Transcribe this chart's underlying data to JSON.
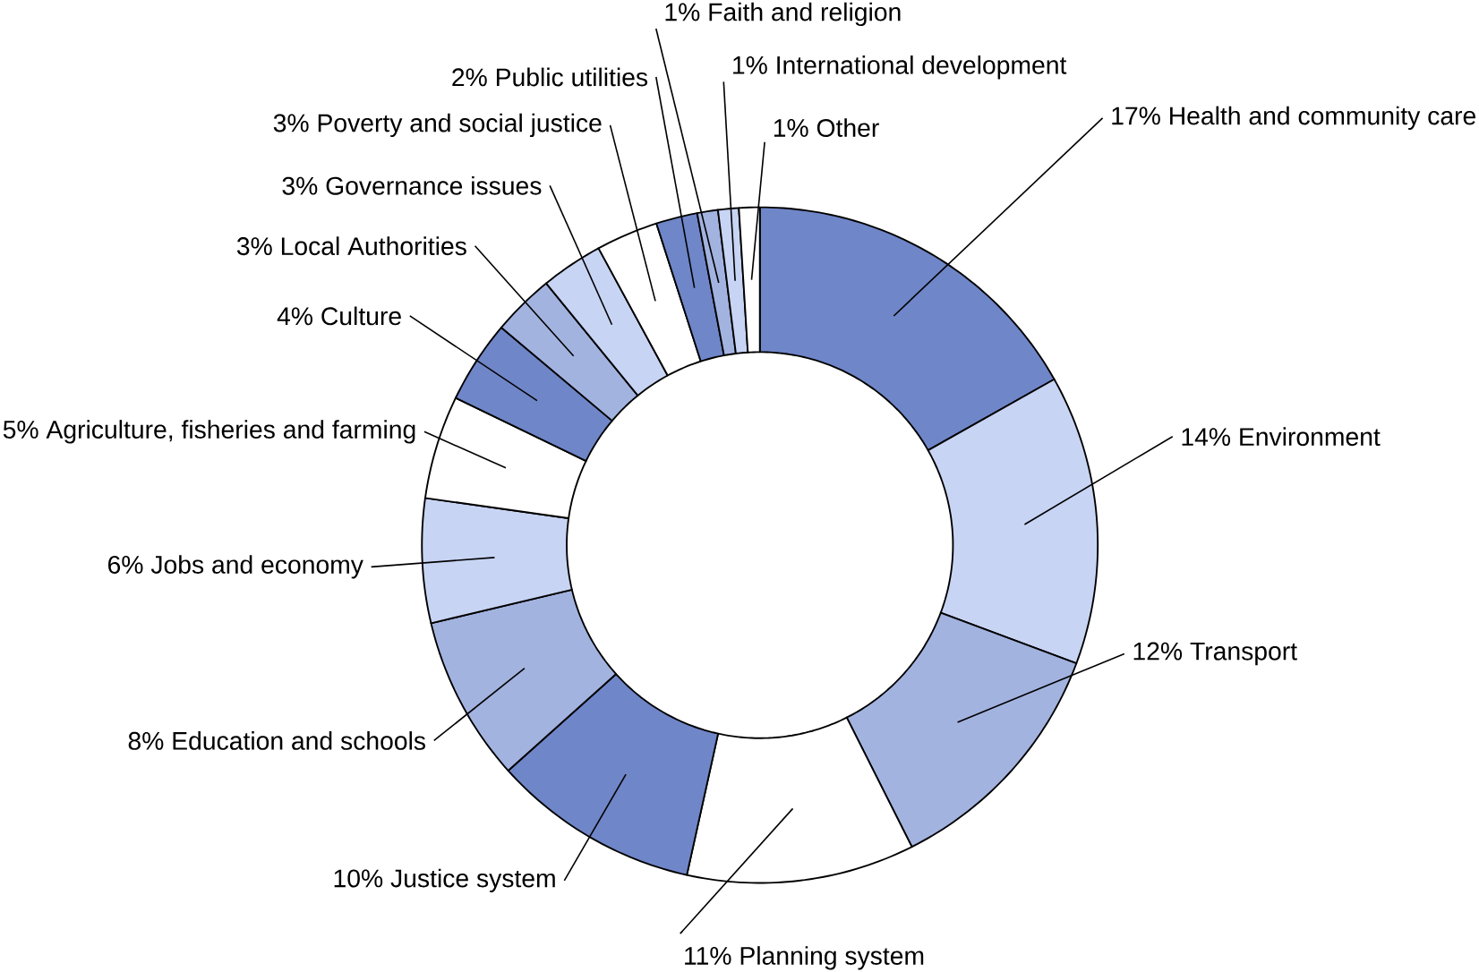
{
  "chart_data": {
    "type": "donut",
    "categories": [
      "Health and community care",
      "Environment",
      "Transport",
      "Planning system",
      "Justice system",
      "Education and schools",
      "Jobs and economy",
      "Agriculture, fisheries and farming",
      "Culture",
      "Local Authorities",
      "Governance issues",
      "Poverty and social justice",
      "Public utilities",
      "Faith and religion",
      "International development",
      "Other"
    ],
    "values": [
      17,
      14,
      12,
      11,
      10,
      8,
      6,
      5,
      4,
      3,
      3,
      3,
      2,
      1,
      1,
      1
    ],
    "value_labels": [
      "17%",
      "14%",
      "12%",
      "11%",
      "10%",
      "8%",
      "6%",
      "5%",
      "4%",
      "3%",
      "3%",
      "3%",
      "2%",
      "1%",
      "1%",
      "1%"
    ],
    "colors": [
      "#6f86c8",
      "#c8d4f4",
      "#a3b3e0",
      "#ffffff",
      "#6f86c8",
      "#a3b3e0",
      "#c8d4f4",
      "#ffffff",
      "#6f86c8",
      "#a3b3e0",
      "#c8d4f4",
      "#ffffff",
      "#6f86c8",
      "#a3b3e0",
      "#c8d4f4",
      "#ffffff"
    ]
  }
}
